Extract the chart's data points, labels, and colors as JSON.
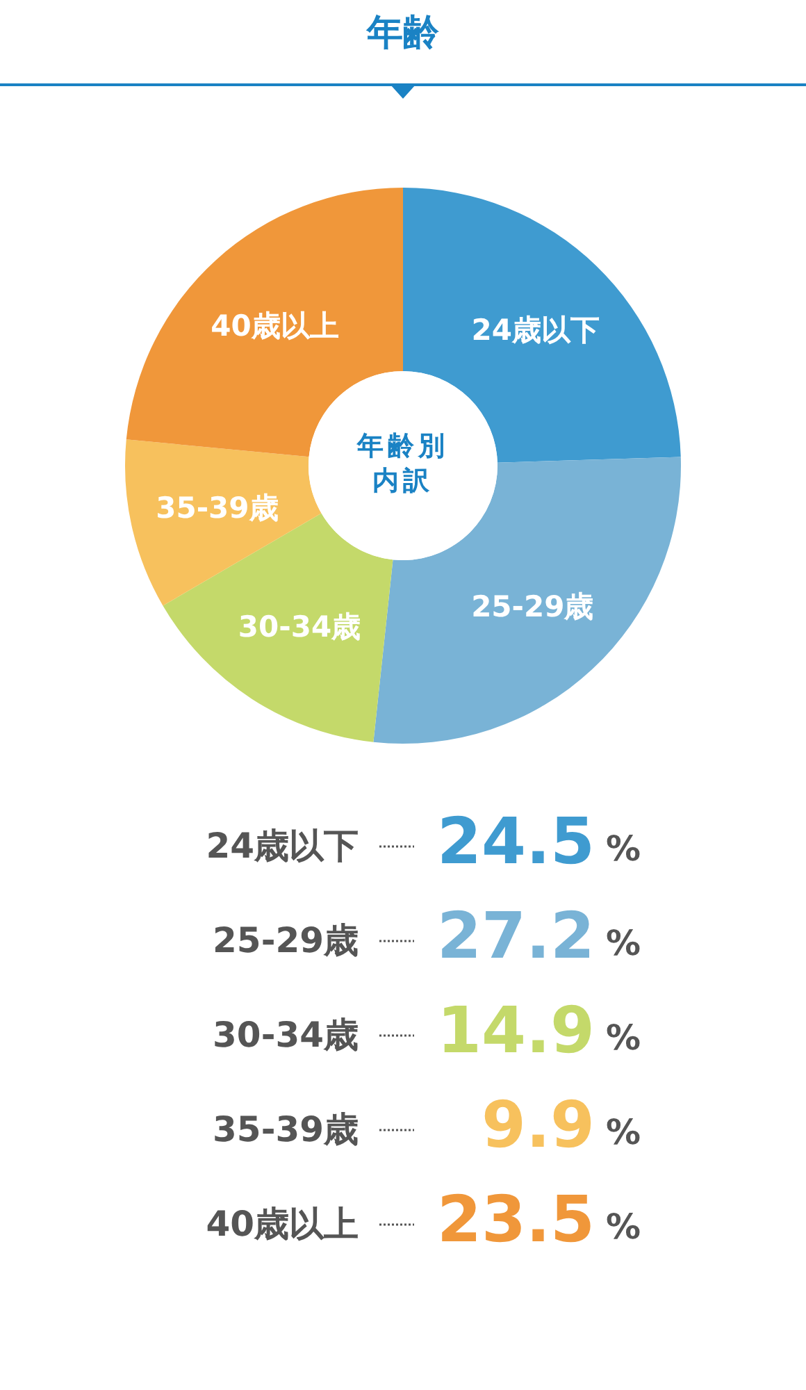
{
  "chart_data": {
    "type": "donut",
    "title": "年齢",
    "annotations": [
      "年齢別内訳",
      "24.5%",
      "27.2%",
      "14.9%",
      "9.9%",
      "23.5%"
    ],
    "categories": [
      "24歳以下",
      "25-29歳",
      "30-34歳",
      "35-39歳",
      "40歳以上"
    ],
    "values": [
      24.5,
      27.2,
      14.9,
      9.9,
      23.5
    ],
    "colors": [
      "#3f9bd0",
      "#79b3d6",
      "#c4d96a",
      "#f7c15d",
      "#f0973a"
    ]
  }
}
